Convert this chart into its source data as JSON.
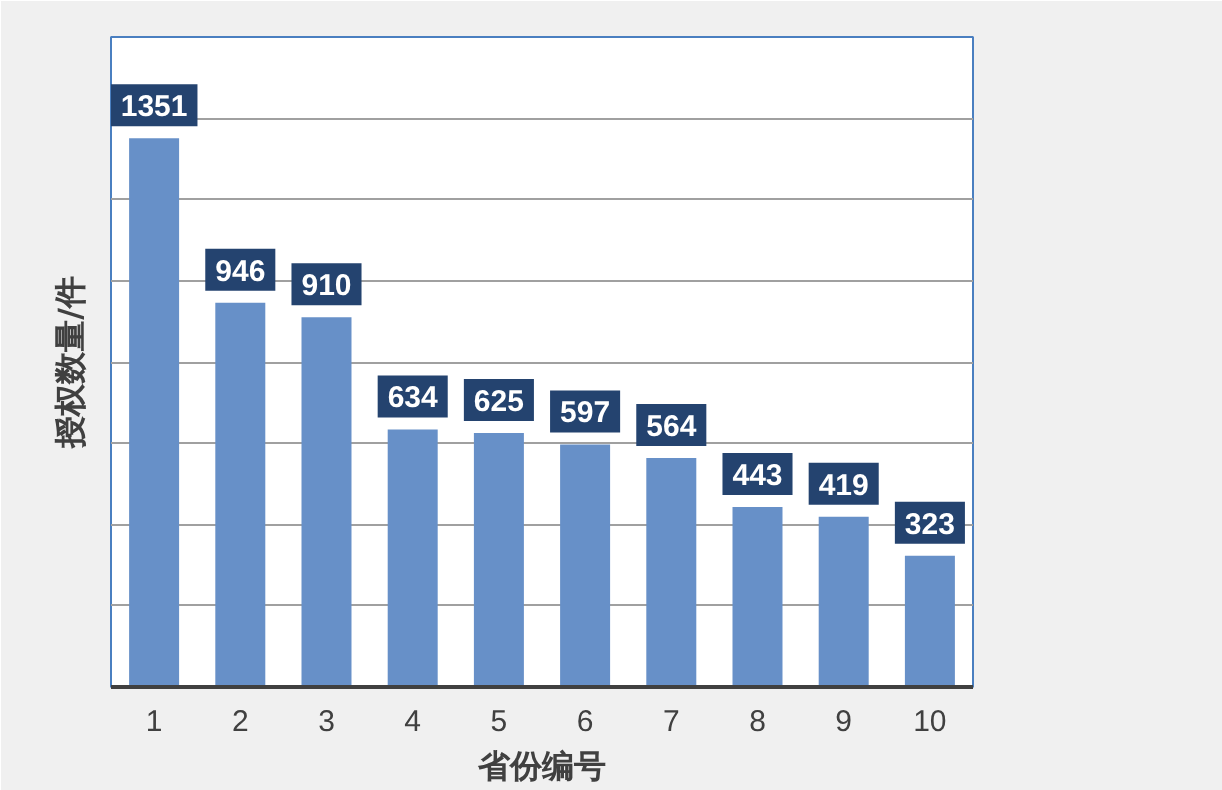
{
  "chart_data": {
    "type": "bar",
    "xlabel": "省份编号",
    "ylabel": "授权数量/件",
    "categories": [
      "1",
      "2",
      "3",
      "4",
      "5",
      "6",
      "7",
      "8",
      "9",
      "10"
    ],
    "values": [
      1351,
      946,
      910,
      634,
      625,
      597,
      564,
      443,
      419,
      323
    ],
    "color": "#6790c8",
    "data_labels": true,
    "grid": "y",
    "tick_labels": "x",
    "ylim": [
      0,
      1600
    ],
    "yticks": [
      {
        "value": 0,
        "label": null
      },
      {
        "value": 200,
        "label": null
      },
      {
        "value": 400,
        "label": null
      },
      {
        "value": 600,
        "label": null
      },
      {
        "value": 800,
        "label": null
      },
      {
        "value": 1000,
        "label": null
      },
      {
        "value": 1200,
        "label": null
      },
      {
        "value": 1400,
        "label": null
      },
      {
        "value": 1600,
        "label": null
      }
    ]
  }
}
